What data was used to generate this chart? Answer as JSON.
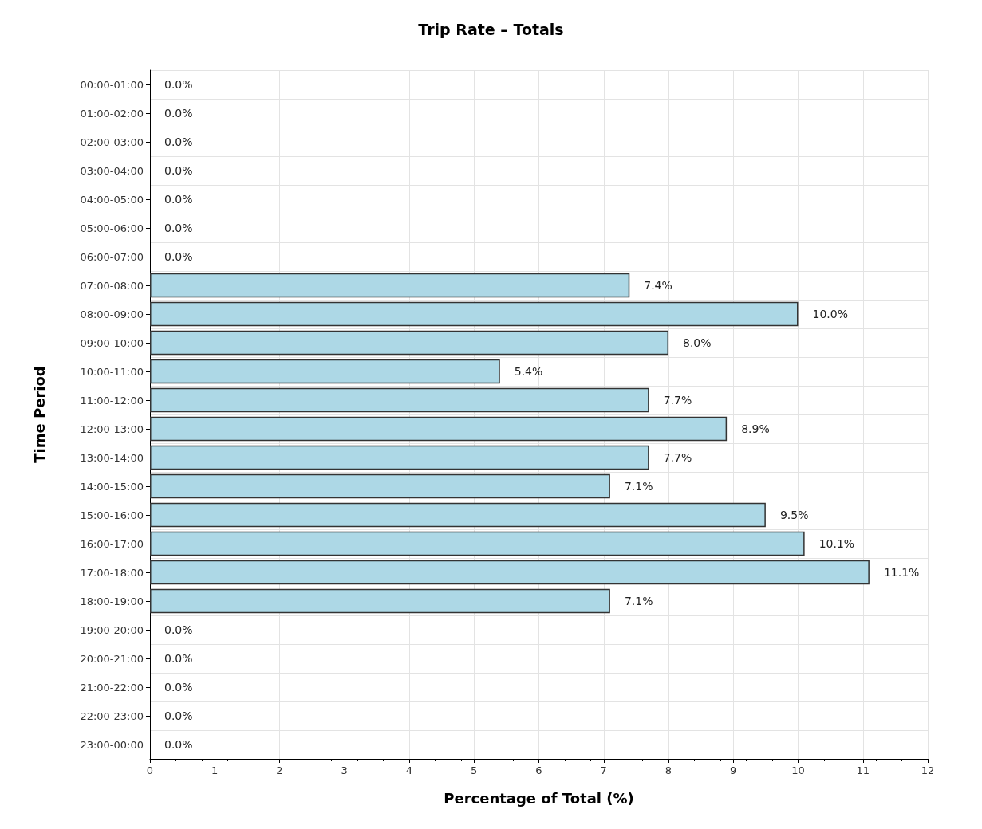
{
  "chart_data": {
    "type": "bar",
    "orientation": "horizontal",
    "title": "Trip Rate – Totals",
    "xlabel": "Percentage of Total (%)",
    "ylabel": "Time Period",
    "categories": [
      "00:00-01:00",
      "01:00-02:00",
      "02:00-03:00",
      "03:00-04:00",
      "04:00-05:00",
      "05:00-06:00",
      "06:00-07:00",
      "07:00-08:00",
      "08:00-09:00",
      "09:00-10:00",
      "10:00-11:00",
      "11:00-12:00",
      "12:00-13:00",
      "13:00-14:00",
      "14:00-15:00",
      "15:00-16:00",
      "16:00-17:00",
      "17:00-18:00",
      "18:00-19:00",
      "19:00-20:00",
      "20:00-21:00",
      "21:00-22:00",
      "22:00-23:00",
      "23:00-00:00"
    ],
    "values": [
      0,
      0,
      0,
      0,
      0,
      0,
      0,
      7.4,
      10.0,
      8.0,
      5.4,
      7.7,
      8.9,
      7.7,
      7.1,
      9.5,
      10.1,
      11.1,
      7.1,
      0,
      0,
      0,
      0,
      0
    ],
    "value_labels": [
      "0.0%",
      "0.0%",
      "0.0%",
      "0.0%",
      "0.0%",
      "0.0%",
      "0.0%",
      "7.4%",
      "10.0%",
      "8.0%",
      "5.4%",
      "7.7%",
      "8.9%",
      "7.7%",
      "7.1%",
      "9.5%",
      "10.1%",
      "11.1%",
      "7.1%",
      "0.0%",
      "0.0%",
      "0.0%",
      "0.0%",
      "0.0%"
    ],
    "color": "#add8e6",
    "xlim": [
      0,
      12
    ],
    "xticks": [
      0,
      1,
      2,
      3,
      4,
      5,
      6,
      7,
      8,
      9,
      10,
      11,
      12
    ],
    "grid": true
  }
}
